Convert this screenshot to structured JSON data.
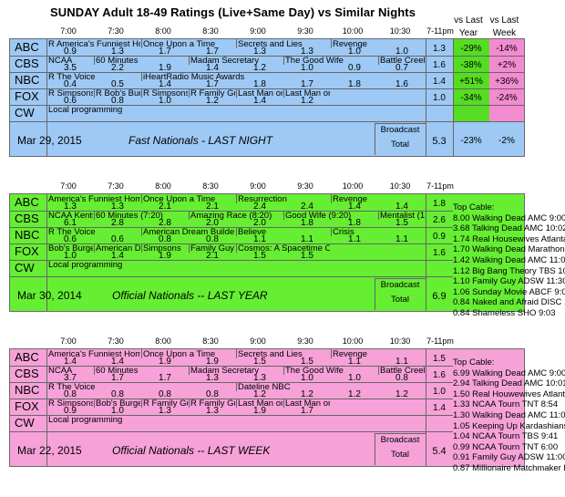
{
  "title": "SUNDAY Adult 18-49 Ratings (Live+Same Day) vs Similar Nights",
  "vs_headers": {
    "year": "vs Last\nYear",
    "week": "vs Last\nWeek"
  },
  "time_labels": [
    "7:00",
    "7:30",
    "8:00",
    "8:30",
    "9:00",
    "9:30",
    "10:00",
    "10:30",
    "7-11pm"
  ],
  "colors": {
    "blue": "#9ec9f5",
    "green": "#66ee33",
    "pink": "#f6a2d8",
    "yr_col": "#55dd22",
    "wk_col": "#f38bd0",
    "blue_total": "#8fc0ef"
  },
  "blocks": [
    {
      "id": "b1",
      "date": "Mar 29, 2015",
      "label": "Fast Nationals - LAST NIGHT",
      "broadcast_label": "Broadcast",
      "total_label": "Total",
      "total": "5.3",
      "total_yr": "-23%",
      "total_wk": "-2%",
      "networks": [
        {
          "name": "ABC",
          "shows": [
            "R America's Funniest Ho",
            "Once Upon a Time",
            "Secrets and Lies",
            "Revenge"
          ],
          "ratings": [
            "0.9",
            "1.3",
            "1.7",
            "1.7",
            "1.3",
            "1.3",
            "1.0",
            "1.0"
          ],
          "avg": "1.3",
          "yr": "-29%",
          "wk": "-14%"
        },
        {
          "name": "CBS",
          "shows": [
            "NCAA",
            "60 Minutes",
            "Madam Secretary",
            "The Good Wife",
            "Battle Creek"
          ],
          "ratings": [
            "3.5",
            "2.2",
            "1.9",
            "1.4",
            "1.2",
            "1.0",
            "0.9",
            "0.7"
          ],
          "avg": "1.6",
          "yr": "-38%",
          "wk": "+2%"
        },
        {
          "name": "NBC",
          "shows": [
            "R The Voice",
            "iHeartRadio Music Awards"
          ],
          "ratings": [
            "0.4",
            "0.5",
            "1.4",
            "1.7",
            "1.8",
            "1.7",
            "1.8",
            "1.6"
          ],
          "avg": "1.4",
          "yr": "+51%",
          "wk": "+36%"
        },
        {
          "name": "FOX",
          "shows": [
            "R Simpsons",
            "R Bob's Bur",
            "R Simpsons",
            "R Family Gu",
            "Last Man on",
            "Last Man on"
          ],
          "ratings": [
            "0.6",
            "0.8",
            "1.0",
            "1.2",
            "1.4",
            "1.2"
          ],
          "avg": "1.0",
          "yr": "-34%",
          "wk": "-24%"
        },
        {
          "name": "CW",
          "shows": [
            "Local programming"
          ],
          "ratings": [],
          "avg": "",
          "yr": "",
          "wk": ""
        }
      ],
      "top_cable": []
    },
    {
      "id": "b2",
      "date": "Mar 30, 2014",
      "label": "Official Nationals -- LAST YEAR",
      "broadcast_label": "Broadcast",
      "total_label": "Total",
      "total": "6.9",
      "networks": [
        {
          "name": "ABC",
          "shows": [
            "America's Funniest Home",
            "Once Upon a Time",
            "Resurrection",
            "Revenge"
          ],
          "ratings": [
            "1.3",
            "1.3",
            "2.1",
            "2.1",
            "2.4",
            "2.4",
            "1.4",
            "1.4"
          ],
          "avg": "1.8"
        },
        {
          "name": "CBS",
          "shows": [
            "NCAA Kents",
            "60 Minutes (7:20)",
            "Amazing Race (8:20)",
            "Good Wife (9:20)",
            "Mentalist (10"
          ],
          "ratings": [
            "6.1",
            "2.8",
            "2.8",
            "2.0",
            "2.0",
            "1.8",
            "1.8",
            "1.5"
          ],
          "avg": "2.6"
        },
        {
          "name": "NBC",
          "shows": [
            "R The Voice",
            "American Dream Builders",
            "Believe",
            "Crisis"
          ],
          "ratings": [
            "0.6",
            "0.6",
            "0.8",
            "0.8",
            "1.1",
            "1.1",
            "1.1",
            "1.1"
          ],
          "avg": "0.9"
        },
        {
          "name": "FOX",
          "shows": [
            "Bob's Burge",
            "American D",
            "Simpsons",
            "Family Guy",
            "Cosmos: A Spacetime Oc"
          ],
          "ratings": [
            "1.0",
            "1.4",
            "1.9",
            "2.1",
            "1.5",
            "1.5"
          ],
          "avg": "1.6"
        },
        {
          "name": "CW",
          "shows": [
            "Local programming"
          ],
          "ratings": [],
          "avg": ""
        }
      ],
      "top_cable_header": "Top Cable:",
      "top_cable": [
        "8.00 Walking Dead AMC 9:00",
        "3.68 Talking Dead AMC 10:02",
        "1.74 Real Housewives Atlanta B",
        "1.70 Walking Dead Marathon AM",
        "1.42 Walking Dead AMC 11:00",
        "1.12 Big Bang Theory TBS 10:00",
        "1.10 Family Guy ADSW 11:30",
        "1.06 Sunday Movie ABCF 9:00",
        "0.84 Naked and Afraid DISC 10",
        "0.84 Shameless SHO 9:03"
      ]
    },
    {
      "id": "b3",
      "date": "Mar 22, 2015",
      "label": "Official Nationals -- LAST WEEK",
      "broadcast_label": "Broadcast",
      "total_label": "Total",
      "total": "5.4",
      "networks": [
        {
          "name": "ABC",
          "shows": [
            "America's Funniest Home",
            "Once Upon a Time",
            "Secrets and Lies",
            "Revenge"
          ],
          "ratings": [
            "1.4",
            "1.4",
            "1.9",
            "1.9",
            "1.5",
            "1.5",
            "1.1",
            "1.1"
          ],
          "avg": "1.5"
        },
        {
          "name": "CBS",
          "shows": [
            "NCAA",
            "60 Minutes",
            "Madam Secretary",
            "The Good Wife",
            "Battle Creek"
          ],
          "ratings": [
            "3.7",
            "1.7",
            "1.7",
            "1.3",
            "1.3",
            "1.0",
            "1.0",
            "0.8"
          ],
          "avg": "1.6"
        },
        {
          "name": "NBC",
          "shows": [
            "R The Voice",
            "Dateline NBC"
          ],
          "ratings": [
            "0.8",
            "0.8",
            "0.8",
            "0.8",
            "1.2",
            "1.2",
            "1.2",
            "1.2"
          ],
          "avg": "1.0"
        },
        {
          "name": "FOX",
          "shows": [
            "R Simpsons",
            "Bob's Burge",
            "R Family Gu",
            "R Family Gu",
            "Last Man on",
            "Last Man on"
          ],
          "ratings": [
            "0.9",
            "1.0",
            "1.3",
            "1.3",
            "1.9",
            "1.7"
          ],
          "avg": "1.4"
        },
        {
          "name": "CW",
          "shows": [
            "Local programming"
          ],
          "ratings": [],
          "avg": ""
        }
      ],
      "top_cable_header": "Top Cable:",
      "top_cable": [
        "6.99 Walking Dead AMC 9:00",
        "2.94 Talking Dead AMC 10:01",
        "1.50 Real Houwewives Atlanta",
        "1.33 NCAA Tourn TNT 8:54",
        "1.30 Walking Dead AMC 11:00",
        "1.05 Keeping Up Kardashians E",
        "1.04 NCAA Tourn TBS 9:41",
        "0.99 NCAA Tourn TNT 6:00",
        "0.91 Family Guy ADSW 11:00",
        "0.87 Millionaire Matchmaker BRA"
      ]
    }
  ]
}
